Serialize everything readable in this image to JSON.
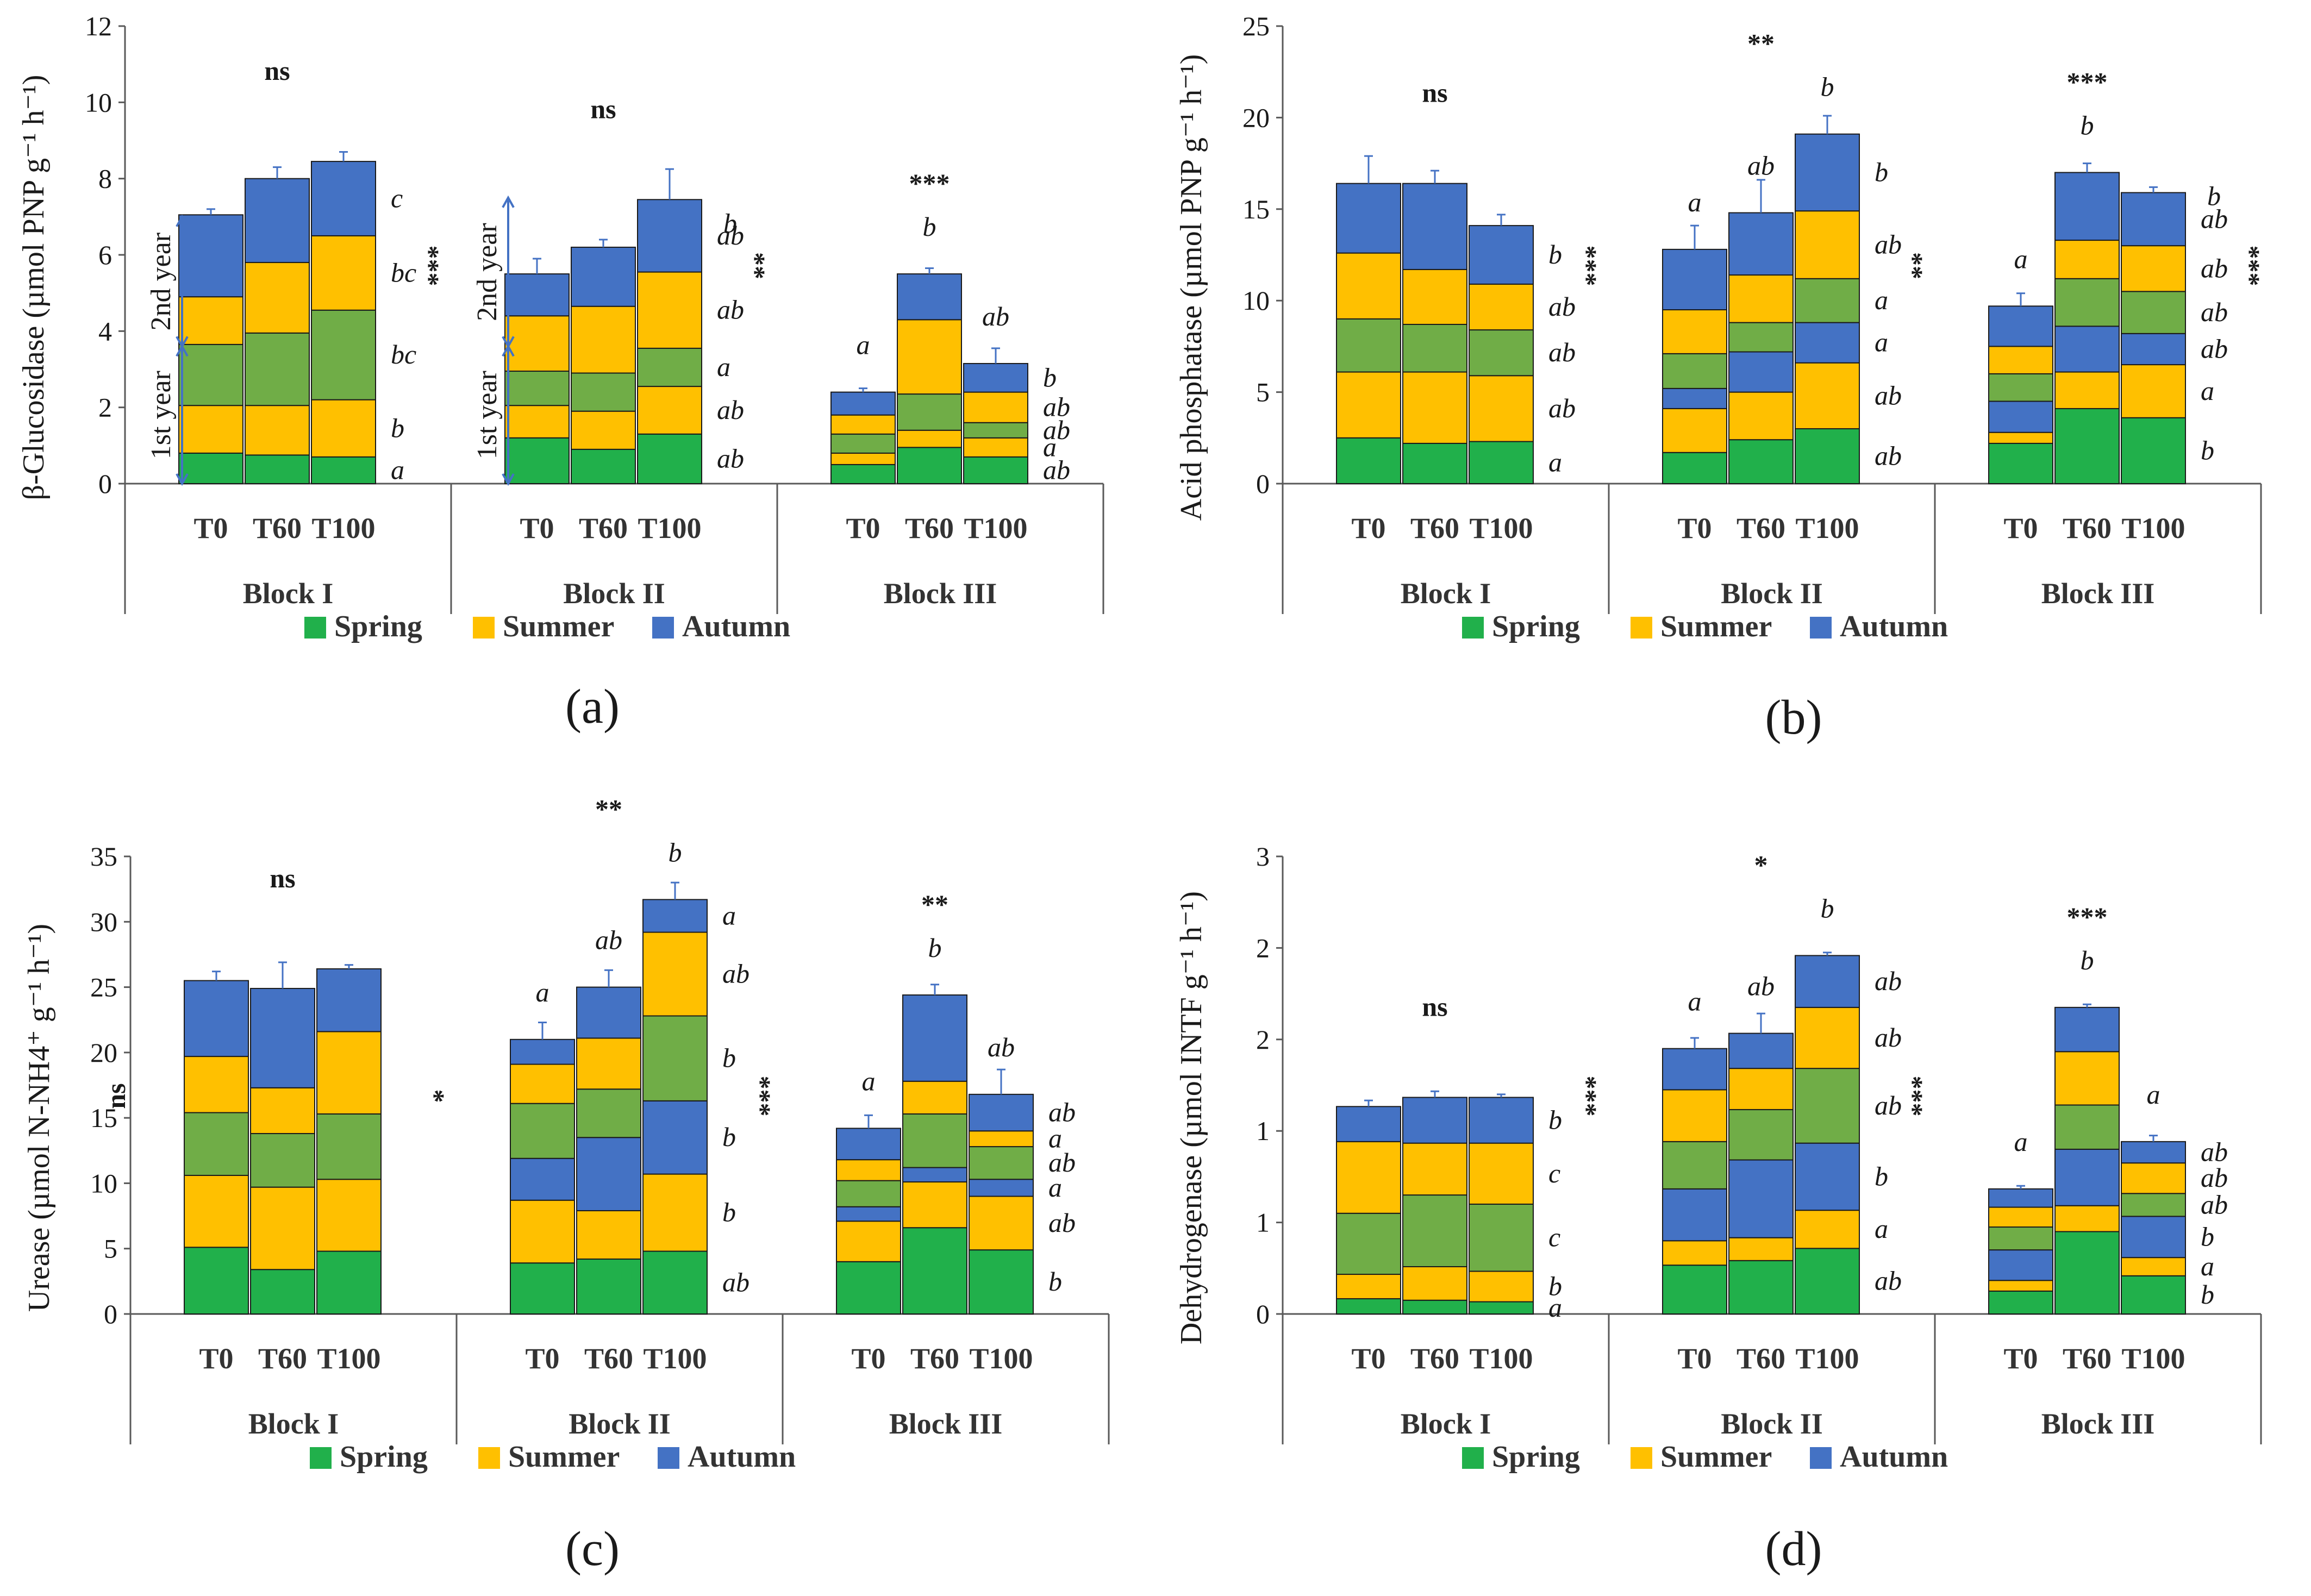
{
  "colors": {
    "spring": "#21b04b",
    "summer": "#ffc000",
    "autumn": "#4472c4",
    "spring_y2": "#70ad47",
    "axis": "#595959",
    "error": "#4472c4"
  },
  "legend": {
    "spring": "Spring",
    "summer": "Summer",
    "autumn": "Autumn"
  },
  "labels": {
    "first_year": "1st year",
    "second_year": "2nd year"
  },
  "chart_data": [
    {
      "type": "bar",
      "stacked": true,
      "panel": "a",
      "ylabel": "β-Glucosidase (µmol PNP g⁻¹ h⁻¹)",
      "ylim": [
        0,
        12
      ],
      "yticks": [
        "0",
        "2",
        "4",
        "6",
        "8",
        "10",
        "12"
      ],
      "groups": [
        {
          "name": "Block I",
          "sig_top": "ns",
          "sig_side": "",
          "bars": [
            {
              "label": "T0",
              "values": [
                0.8,
                1.25,
                1.6,
                1.25,
                2.15
              ],
              "errors": [
                0.3,
                0.25,
                0.3,
                0.35,
                0.15
              ],
              "top_letter": ""
            },
            {
              "label": "T60",
              "values": [
                0.75,
                1.3,
                1.9,
                1.85,
                2.2
              ],
              "errors": [
                0.3,
                0.45,
                0.25,
                0.3,
                0.3
              ],
              "top_letter": ""
            },
            {
              "label": "T100",
              "values": [
                0.7,
                1.5,
                2.35,
                1.95,
                1.95
              ],
              "errors": [
                0.1,
                0.3,
                0.85,
                0.25,
                0.25
              ],
              "top_letter": ""
            }
          ],
          "side_letters": [
            "a",
            "b",
            "bc",
            "bc",
            "c"
          ]
        },
        {
          "name": "Block II",
          "sig_top": "ns",
          "sig_side": "***",
          "bars": [
            {
              "label": "T0",
              "values": [
                1.2,
                0.85,
                0.9,
                1.45,
                1.1
              ],
              "errors": [
                0.4,
                0.45,
                0.35,
                0.7,
                0.4
              ],
              "top_letter": ""
            },
            {
              "label": "T60",
              "values": [
                0.9,
                1.0,
                1.0,
                1.75,
                1.55
              ],
              "errors": [
                0.4,
                0.45,
                0.35,
                0.75,
                0.2
              ],
              "top_letter": ""
            },
            {
              "label": "T100",
              "values": [
                1.3,
                1.25,
                1.0,
                2.0,
                1.9
              ],
              "errors": [
                0.1,
                0.9,
                0.2,
                0.15,
                0.8
              ],
              "top_letter": ""
            }
          ],
          "side_letters": [
            "ab",
            "ab",
            "a",
            "ab",
            "ab"
          ],
          "side_top_letter": "b"
        },
        {
          "name": "Block III",
          "sig_top": "***",
          "sig_side": "**",
          "bars": [
            {
              "label": "T0",
              "values": [
                0.5,
                0.3,
                0.5,
                0.5,
                0.6
              ],
              "errors": [
                0.15,
                0.25,
                0.25,
                0.15,
                0.1
              ],
              "top_letter": "a"
            },
            {
              "label": "T60",
              "values": [
                0.95,
                0.45,
                0.95,
                1.95,
                1.2
              ],
              "errors": [
                0.1,
                0.3,
                0.5,
                0.3,
                0.15
              ],
              "top_letter": "b"
            },
            {
              "label": "T100",
              "values": [
                0.7,
                0.5,
                0.4,
                0.8,
                0.75
              ],
              "errors": [
                0.1,
                0.3,
                0.2,
                0.2,
                0.4
              ],
              "top_letter": "ab"
            }
          ],
          "side_letters": [
            "ab",
            "a",
            "ab",
            "ab",
            "b"
          ]
        }
      ]
    },
    {
      "type": "bar",
      "stacked": true,
      "panel": "b",
      "ylabel": "Acid phosphatase (µmol PNP g⁻¹ h⁻¹)",
      "ylim": [
        0,
        25
      ],
      "yticks": [
        "0",
        "5",
        "10",
        "15",
        "20",
        "25"
      ],
      "groups": [
        {
          "name": "Block I",
          "sig_top": "ns",
          "sig_side": "",
          "bars": [
            {
              "label": "T0",
              "values": [
                2.5,
                3.6,
                2.9,
                3.6,
                3.8
              ],
              "errors": [
                0.5,
                0.7,
                0.3,
                0.8,
                1.5
              ],
              "top_letter": ""
            },
            {
              "label": "T60",
              "values": [
                2.2,
                3.9,
                2.6,
                3.0,
                4.7
              ],
              "errors": [
                0.6,
                1.6,
                0.3,
                0.5,
                0.7
              ],
              "top_letter": ""
            },
            {
              "label": "T100",
              "values": [
                2.3,
                3.6,
                2.5,
                2.5,
                3.2
              ],
              "errors": [
                0.4,
                0.8,
                1.3,
                0.5,
                0.6
              ],
              "top_letter": ""
            }
          ],
          "side_letters": [
            "a",
            "ab",
            "ab",
            "ab",
            "b"
          ]
        },
        {
          "name": "Block II",
          "sig_top": "**",
          "sig_side": "***",
          "bars": [
            {
              "label": "T0",
              "values": [
                1.7,
                2.4,
                1.1,
                1.9,
                2.4,
                3.3
              ],
              "errors": [
                0.7,
                0.8,
                0.4,
                1.2,
                1.3,
                1.3
              ],
              "top_letter": "a"
            },
            {
              "label": "T60",
              "values": [
                2.4,
                2.6,
                2.2,
                1.6,
                2.6,
                3.4
              ],
              "errors": [
                0.8,
                0.3,
                1.5,
                0.4,
                0.5,
                1.8
              ],
              "top_letter": "ab"
            },
            {
              "label": "T100",
              "values": [
                3.0,
                3.6,
                2.2,
                2.4,
                3.7,
                4.2
              ],
              "errors": [
                0.3,
                0.4,
                0.5,
                0.5,
                0.6,
                1.0
              ],
              "top_letter": "b"
            }
          ],
          "side_letters": [
            "ab",
            "ab",
            "a",
            "a",
            "ab",
            "b"
          ]
        },
        {
          "name": "Block III",
          "sig_top": "***",
          "sig_side": "**",
          "side_sig_right": "***",
          "bars": [
            {
              "label": "T0",
              "values": [
                2.2,
                0.6,
                1.7,
                1.5,
                1.5,
                2.2
              ],
              "errors": [
                0.3,
                0.4,
                0.6,
                0.7,
                0.4,
                0.7
              ],
              "top_letter": "a"
            },
            {
              "label": "T60",
              "values": [
                4.1,
                2.0,
                2.5,
                2.6,
                2.1,
                3.7
              ],
              "errors": [
                0.4,
                0.8,
                0.6,
                1.0,
                0.3,
                0.5
              ],
              "top_letter": "b"
            },
            {
              "label": "T100",
              "values": [
                3.6,
                2.9,
                1.7,
                2.3,
                2.5,
                2.9
              ],
              "errors": [
                0.3,
                0.7,
                1.5,
                1.3,
                1.1,
                0.3
              ],
              "top_letter": ""
            }
          ],
          "side_letters": [
            "b",
            "a",
            "ab",
            "ab",
            "ab",
            "ab"
          ],
          "side_top_letter": "b"
        }
      ]
    },
    {
      "type": "bar",
      "stacked": true,
      "panel": "c",
      "ylabel": "Urease (µmol N-NH4⁺ g⁻¹ h⁻¹)",
      "ylim": [
        0,
        35
      ],
      "yticks": [
        "0",
        "5",
        "10",
        "15",
        "20",
        "25",
        "30",
        "35"
      ],
      "groups": [
        {
          "name": "Block I",
          "sig_top": "ns",
          "sig_side": "ns",
          "bars": [
            {
              "label": "T0",
              "values": [
                5.1,
                5.5,
                4.8,
                4.3,
                5.8
              ],
              "errors": [
                0.8,
                1.7,
                0.8,
                1.6,
                0.7
              ],
              "top_letter": ""
            },
            {
              "label": "T60",
              "values": [
                3.4,
                6.3,
                4.1,
                3.5,
                7.6
              ],
              "errors": [
                1.0,
                2.0,
                1.0,
                1.2,
                2.0
              ],
              "top_letter": ""
            },
            {
              "label": "T100",
              "values": [
                4.8,
                5.5,
                5.0,
                6.3,
                4.8
              ],
              "errors": [
                0.6,
                1.0,
                0.6,
                2.4,
                0.3
              ],
              "top_letter": ""
            }
          ],
          "side_letters": []
        },
        {
          "name": "Block II",
          "sig_top": "**",
          "sig_side": "*",
          "bars": [
            {
              "label": "T0",
              "values": [
                3.9,
                4.8,
                3.2,
                4.2,
                3.0,
                1.9
              ],
              "errors": [
                0.6,
                1.2,
                1.7,
                1.8,
                1.3,
                1.3
              ],
              "top_letter": "a"
            },
            {
              "label": "T60",
              "values": [
                4.2,
                3.7,
                5.6,
                3.7,
                3.9,
                3.9
              ],
              "errors": [
                1.2,
                0.2,
                2.6,
                1.3,
                1.6,
                1.3
              ],
              "top_letter": "ab"
            },
            {
              "label": "T100",
              "values": [
                4.8,
                5.9,
                5.6,
                6.5,
                6.4,
                2.5
              ],
              "errors": [
                0.4,
                1.9,
                0.9,
                0.5,
                0.4,
                1.3
              ],
              "top_letter": "b"
            }
          ],
          "side_letters": [
            "ab",
            "b",
            "b",
            "b",
            "ab",
            "a"
          ]
        },
        {
          "name": "Block III",
          "sig_top": "**",
          "sig_side": "***",
          "bars": [
            {
              "label": "T0",
              "values": [
                4.0,
                3.1,
                1.1,
                2.0,
                1.6,
                2.4
              ],
              "errors": [
                0.4,
                1.3,
                0.5,
                0.6,
                0.6,
                1.0
              ],
              "top_letter": "a"
            },
            {
              "label": "T60",
              "values": [
                6.6,
                3.5,
                1.1,
                4.1,
                2.5,
                6.6
              ],
              "errors": [
                3.3,
                0.6,
                2.0,
                1.4,
                0.4,
                0.8
              ],
              "top_letter": "b"
            },
            {
              "label": "T100",
              "values": [
                4.9,
                4.1,
                1.3,
                2.5,
                1.2,
                2.8
              ],
              "errors": [
                1.0,
                0.9,
                1.0,
                1.3,
                0.3,
                1.9
              ],
              "top_letter": "ab"
            }
          ],
          "side_letters": [
            "b",
            "ab",
            "a",
            "ab",
            "a",
            "ab"
          ]
        }
      ]
    },
    {
      "type": "bar",
      "stacked": true,
      "panel": "d",
      "ylabel": "Dehydrogenase (µmol INTF g⁻¹ h⁻¹)",
      "ylim": [
        0,
        3
      ],
      "yticks": [
        "0",
        "1",
        "1",
        "2",
        "2",
        "3"
      ],
      "groups": [
        {
          "name": "Block I",
          "sig_top": "ns",
          "sig_side": "",
          "bars": [
            {
              "label": "T0",
              "values": [
                0.1,
                0.16,
                0.4,
                0.47,
                0.23
              ],
              "errors": [
                0.03,
                0.05,
                0.1,
                0.05,
                0.04
              ],
              "top_letter": ""
            },
            {
              "label": "T60",
              "values": [
                0.09,
                0.22,
                0.47,
                0.34,
                0.3
              ],
              "errors": [
                0.03,
                0.06,
                0.08,
                0.05,
                0.04
              ],
              "top_letter": ""
            },
            {
              "label": "T100",
              "values": [
                0.08,
                0.2,
                0.44,
                0.4,
                0.3
              ],
              "errors": [
                0.03,
                0.06,
                0.06,
                0.06,
                0.02
              ],
              "top_letter": ""
            }
          ],
          "side_letters": [
            "a",
            "b",
            "c",
            "c",
            "b"
          ]
        },
        {
          "name": "Block II",
          "sig_top": "*",
          "sig_side": "***",
          "bars": [
            {
              "label": "T0",
              "values": [
                0.32,
                0.16,
                0.34,
                0.31,
                0.34,
                0.27
              ],
              "errors": [
                0.06,
                0.06,
                0.08,
                0.14,
                0.07,
                0.07
              ],
              "top_letter": "a"
            },
            {
              "label": "T60",
              "values": [
                0.35,
                0.15,
                0.51,
                0.33,
                0.27,
                0.23
              ],
              "errors": [
                0.08,
                0.05,
                0.13,
                0.05,
                0.02,
                0.13
              ],
              "top_letter": "ab"
            },
            {
              "label": "T100",
              "values": [
                0.43,
                0.25,
                0.44,
                0.49,
                0.4,
                0.34
              ],
              "errors": [
                0.19,
                0.19,
                0.04,
                0.12,
                0.13,
                0.02
              ],
              "top_letter": "b"
            }
          ],
          "side_letters": [
            "ab",
            "a",
            "b",
            "ab",
            "ab",
            "ab"
          ]
        },
        {
          "name": "Block III",
          "sig_top": "***",
          "sig_side": "***",
          "bars": [
            {
              "label": "T0",
              "values": [
                0.15,
                0.07,
                0.2,
                0.15,
                0.13,
                0.12
              ],
              "errors": [
                0.02,
                0.02,
                0.06,
                0.04,
                0.02,
                0.02
              ],
              "top_letter": "a"
            },
            {
              "label": "T60",
              "values": [
                0.54,
                0.17,
                0.37,
                0.29,
                0.35,
                0.29
              ],
              "errors": [
                0.13,
                0.05,
                0.15,
                0.08,
                0.03,
                0.02
              ],
              "top_letter": "b"
            },
            {
              "label": "T100",
              "values": [
                0.25,
                0.12,
                0.27,
                0.15,
                0.2,
                0.14
              ],
              "errors": [
                0.03,
                0.03,
                0.15,
                0.05,
                0.05,
                0.04
              ],
              "top_letter": "a"
            }
          ],
          "side_letters": [
            "b",
            "a",
            "b",
            "ab",
            "ab",
            "ab"
          ]
        }
      ]
    }
  ],
  "panel_labels": [
    "(a)",
    "(b)",
    "(c)",
    "(d)"
  ]
}
